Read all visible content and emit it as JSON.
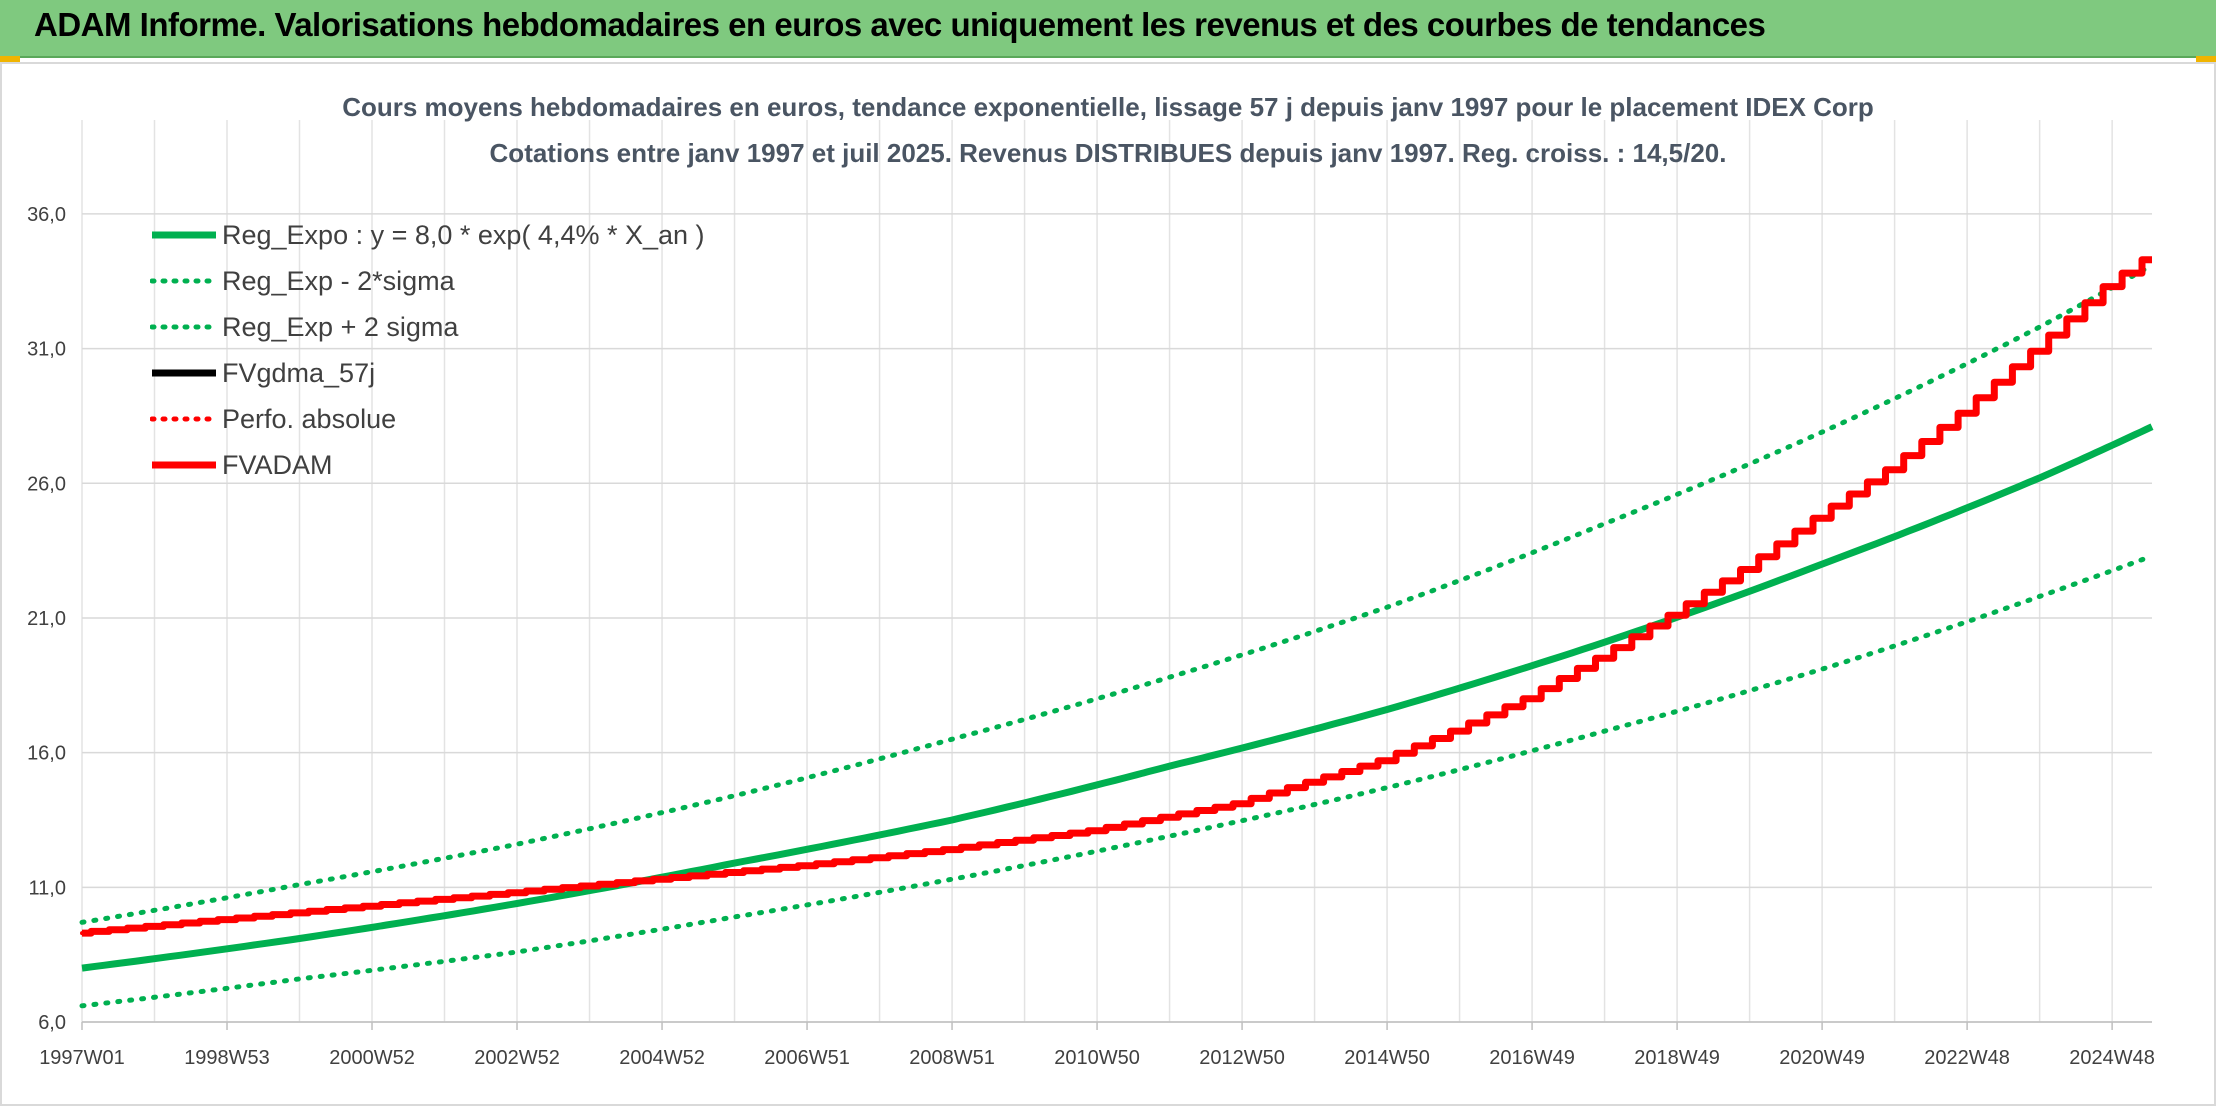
{
  "header": {
    "title": "ADAM Informe. Valorisations hebdomadaires en euros avec uniquement les revenus et des courbes de tendances",
    "banner_color": "#7fc97f"
  },
  "chart_data": {
    "type": "line",
    "title": "Cours moyens hebdomadaires en euros, tendance exponentielle, lissage 57 j depuis janv 1997 pour le placement IDEX Corp",
    "subtitle": "Cotations entre janv 1997 et juil 2025. Revenus DISTRIBUES depuis janv 1997. Reg. croiss. : 14,5/20.",
    "xlabel": "",
    "ylabel": "",
    "x_range": [
      1997.0,
      2025.55
    ],
    "ylim": [
      6.0,
      38.0
    ],
    "y_ticks": [
      "6,0",
      "11,0",
      "16,0",
      "21,0",
      "26,0",
      "31,0",
      "36,0"
    ],
    "y_tick_values": [
      6,
      11,
      16,
      21,
      26,
      31,
      36
    ],
    "x_ticks": [
      "1997W01",
      "1998W53",
      "2000W52",
      "2002W52",
      "2004W52",
      "2006W51",
      "2008W51",
      "2010W50",
      "2012W50",
      "2014W50",
      "2016W49",
      "2018W49",
      "2020W49",
      "2022W48",
      "2024W48"
    ],
    "x_tick_values": [
      1997.0,
      1999.0,
      2001.0,
      2003.0,
      2005.0,
      2007.0,
      2009.0,
      2011.0,
      2013.0,
      2015.0,
      2017.0,
      2019.0,
      2021.0,
      2023.0,
      2025.0
    ],
    "grid": true,
    "legend_position": "top-left",
    "series": [
      {
        "name": "Reg_Expo : y = 8,0 * exp( 4,4% *  X_an )",
        "color": "#00b050",
        "style": "solid",
        "x": [
          1997.0,
          2000.0,
          2003.0,
          2006.0,
          2009.0,
          2012.0,
          2015.0,
          2018.0,
          2021.0,
          2024.0,
          2025.55
        ],
        "values": [
          8.0,
          9.1,
          10.4,
          11.9,
          13.5,
          15.5,
          17.6,
          20.1,
          23.0,
          26.2,
          28.1
        ]
      },
      {
        "name": "Reg_Exp - 2*sigma",
        "color": "#00b050",
        "style": "dotted",
        "x": [
          1997.0,
          2000.0,
          2003.0,
          2006.0,
          2009.0,
          2012.0,
          2015.0,
          2018.0,
          2021.0,
          2024.0,
          2025.55
        ],
        "values": [
          6.6,
          7.6,
          8.6,
          9.9,
          11.3,
          12.9,
          14.7,
          16.8,
          19.1,
          21.8,
          23.3
        ]
      },
      {
        "name": "Reg_Exp + 2 sigma",
        "color": "#00b050",
        "style": "dotted",
        "x": [
          1997.0,
          2000.0,
          2003.0,
          2006.0,
          2009.0,
          2012.0,
          2015.0,
          2018.0,
          2021.0,
          2024.0,
          2025.55
        ],
        "values": [
          9.7,
          11.1,
          12.6,
          14.4,
          16.5,
          18.8,
          21.4,
          24.5,
          27.9,
          31.8,
          34.1
        ]
      },
      {
        "name": "FVgdma_57j",
        "color": "#000000",
        "style": "solid",
        "x": [
          1997.0,
          1999.0,
          2001.0,
          2003.0,
          2005.0,
          2007.0,
          2009.0,
          2011.0,
          2013.0,
          2015.0,
          2016.0,
          2017.0,
          2018.0,
          2019.0,
          2020.0,
          2021.0,
          2022.0,
          2023.0,
          2024.0,
          2025.0,
          2025.55
        ],
        "values": [
          9.3,
          9.8,
          10.3,
          10.8,
          11.3,
          11.8,
          12.4,
          13.1,
          14.1,
          15.7,
          16.8,
          18.0,
          19.5,
          21.1,
          22.8,
          24.7,
          26.5,
          28.6,
          30.9,
          33.3,
          34.3
        ]
      },
      {
        "name": "Perfo. absolue",
        "color": "#ff0000",
        "style": "dotted",
        "x": [
          1997.0,
          1999.0,
          2001.0,
          2003.0,
          2005.0,
          2007.0,
          2009.0,
          2011.0,
          2013.0,
          2015.0,
          2016.0,
          2017.0,
          2018.0,
          2019.0,
          2020.0,
          2021.0,
          2022.0,
          2023.0,
          2024.0,
          2025.0,
          2025.55
        ],
        "values": [
          9.3,
          9.8,
          10.3,
          10.8,
          11.3,
          11.8,
          12.4,
          13.1,
          14.1,
          15.7,
          16.8,
          18.0,
          19.5,
          21.1,
          22.8,
          24.7,
          26.5,
          28.6,
          30.9,
          33.3,
          34.3
        ]
      },
      {
        "name": "FVADAM",
        "color": "#ff0000",
        "style": "solid",
        "x": [
          1997.0,
          1999.0,
          2001.0,
          2003.0,
          2005.0,
          2007.0,
          2009.0,
          2011.0,
          2013.0,
          2015.0,
          2016.0,
          2017.0,
          2018.0,
          2019.0,
          2020.0,
          2021.0,
          2022.0,
          2023.0,
          2024.0,
          2025.0,
          2025.55
        ],
        "values": [
          9.3,
          9.8,
          10.3,
          10.8,
          11.3,
          11.8,
          12.4,
          13.1,
          14.1,
          15.7,
          16.8,
          18.0,
          19.5,
          21.1,
          22.8,
          24.7,
          26.5,
          28.6,
          30.9,
          33.3,
          34.3
        ]
      }
    ]
  }
}
